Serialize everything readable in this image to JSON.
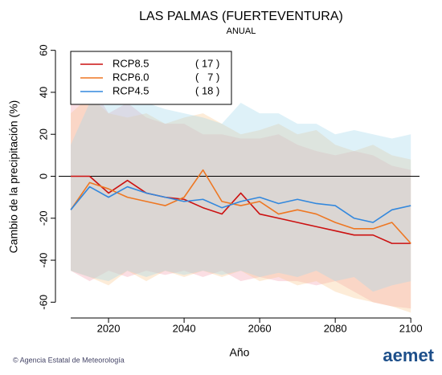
{
  "chart_data": {
    "type": "band-line",
    "title": "LAS PALMAS (FUERTEVENTURA)",
    "subtitle": "ANUAL",
    "x_label": "Año",
    "y_label": "Cambio de la precipitación (%)",
    "footer": "© Agencia Estatal de Meteorología",
    "logo": "aemet",
    "x": [
      2010,
      2015,
      2020,
      2025,
      2030,
      2035,
      2040,
      2045,
      2050,
      2055,
      2060,
      2065,
      2070,
      2075,
      2080,
      2085,
      2090,
      2095,
      2100
    ],
    "xlim": [
      2006.8,
      2102.3
    ],
    "xticks": [
      2020,
      2040,
      2060,
      2080,
      2100
    ],
    "ylim": [
      -66,
      66
    ],
    "yticks": [
      -60,
      -40,
      -20,
      0,
      20,
      40,
      60
    ],
    "zero_line": true,
    "legend": "top-left",
    "series": [
      {
        "name": "RCP8.5",
        "count_label": "( 17 )",
        "color": "#cc1111",
        "band_color": "#f4a0b0",
        "values": [
          0,
          0,
          -8,
          -2,
          -8,
          -10,
          -11,
          -15,
          -18,
          -8,
          -18,
          -20,
          -22,
          -24,
          -26,
          -28,
          -28,
          -32,
          -32
        ],
        "upper": [
          35,
          45,
          30,
          35,
          28,
          25,
          25,
          20,
          20,
          18,
          18,
          20,
          15,
          12,
          10,
          12,
          10,
          5,
          3
        ],
        "lower": [
          -45,
          -50,
          -45,
          -48,
          -45,
          -47,
          -45,
          -48,
          -45,
          -50,
          -48,
          -50,
          -50,
          -52,
          -50,
          -55,
          -60,
          -62,
          -63
        ]
      },
      {
        "name": "RCP6.0",
        "count_label": "(   7 )",
        "color": "#ee7722",
        "band_color": "#f8c890",
        "values": [
          -16,
          -3,
          -6,
          -10,
          -12,
          -14,
          -10,
          3,
          -12,
          -14,
          -12,
          -18,
          -16,
          -18,
          -22,
          -25,
          -25,
          -22,
          -32
        ],
        "upper": [
          30,
          38,
          30,
          28,
          30,
          25,
          28,
          30,
          25,
          20,
          22,
          25,
          20,
          22,
          15,
          12,
          15,
          10,
          8
        ],
        "lower": [
          -45,
          -48,
          -52,
          -45,
          -50,
          -45,
          -48,
          -45,
          -48,
          -45,
          -50,
          -48,
          -52,
          -50,
          -55,
          -58,
          -60,
          -62,
          -65
        ]
      },
      {
        "name": "RCP4.5",
        "count_label": "( 18 )",
        "color": "#3388dd",
        "band_color": "#a0d8ec",
        "values": [
          -16,
          -5,
          -10,
          -5,
          -8,
          -10,
          -12,
          -11,
          -15,
          -12,
          -10,
          -13,
          -11,
          -13,
          -14,
          -20,
          -22,
          -16,
          -14
        ],
        "upper": [
          15,
          35,
          38,
          40,
          35,
          32,
          30,
          28,
          25,
          35,
          30,
          30,
          25,
          25,
          20,
          22,
          20,
          18,
          20
        ],
        "lower": [
          -45,
          -48,
          -50,
          -45,
          -48,
          -45,
          -47,
          -45,
          -47,
          -45,
          -48,
          -46,
          -48,
          -45,
          -50,
          -48,
          -55,
          -52,
          -50
        ]
      }
    ]
  }
}
